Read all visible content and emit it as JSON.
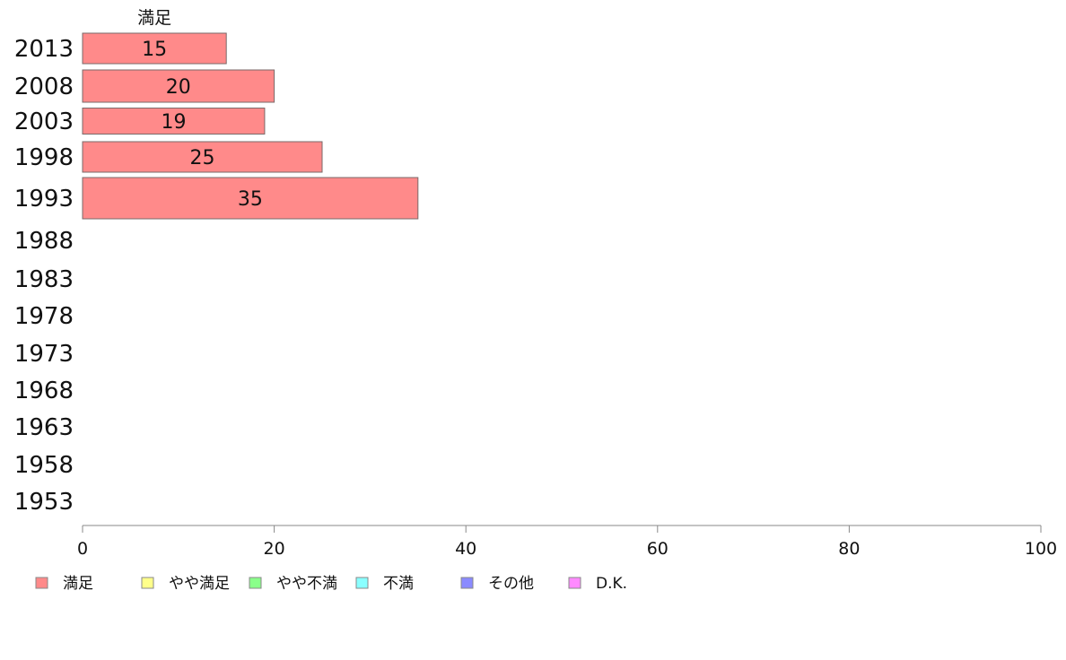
{
  "chart_data": {
    "type": "bar",
    "orientation": "horizontal",
    "stacked": true,
    "categories": [
      "2013",
      "2008",
      "2003",
      "1998",
      "1993",
      "1988",
      "1983",
      "1978",
      "1973",
      "1968",
      "1963",
      "1958",
      "1953"
    ],
    "series": [
      {
        "name": "満足",
        "color": "#ff8a8a",
        "values": [
          15,
          20,
          19,
          25,
          35,
          null,
          null,
          null,
          null,
          null,
          null,
          null,
          null
        ]
      },
      {
        "name": "やや満足",
        "color": "#ffff8a",
        "values": [
          null,
          null,
          null,
          null,
          null,
          null,
          null,
          null,
          null,
          null,
          null,
          null,
          null
        ]
      },
      {
        "name": "やや不満",
        "color": "#8aff8a",
        "values": [
          null,
          null,
          null,
          null,
          null,
          null,
          null,
          null,
          null,
          null,
          null,
          null,
          null
        ]
      },
      {
        "name": "不満",
        "color": "#8affff",
        "values": [
          null,
          null,
          null,
          null,
          null,
          null,
          null,
          null,
          null,
          null,
          null,
          null,
          null
        ]
      },
      {
        "name": "その他",
        "color": "#8a8aff",
        "values": [
          null,
          null,
          null,
          null,
          null,
          null,
          null,
          null,
          null,
          null,
          null,
          null,
          null
        ]
      },
      {
        "name": "D.K.",
        "color": "#ff8aff",
        "values": [
          null,
          null,
          null,
          null,
          null,
          null,
          null,
          null,
          null,
          null,
          null,
          null,
          null
        ]
      }
    ],
    "series_title": "満足",
    "xlim": [
      0,
      100
    ],
    "xticks": [
      0,
      20,
      40,
      60,
      80,
      100
    ],
    "legend": "bottom-left",
    "grid": false
  }
}
